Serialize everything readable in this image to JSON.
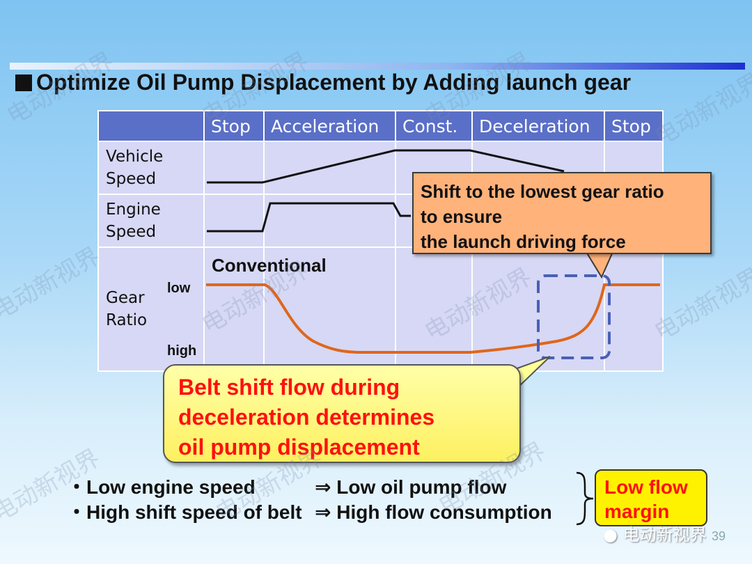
{
  "title": "Optimize Oil Pump Displacement by Adding launch gear",
  "phases": [
    "Stop",
    "Acceleration",
    "Const.",
    "Deceleration",
    "Stop"
  ],
  "rows": {
    "vehicle_speed": [
      "Vehicle",
      "Speed"
    ],
    "engine_speed": [
      "Engine",
      "Speed"
    ],
    "gear_ratio": [
      "Gear",
      "Ratio"
    ]
  },
  "gear_axis": {
    "low": "low",
    "high": "high"
  },
  "conventional_label": "Conventional",
  "orange_callout": [
    "Shift to the lowest gear ratio",
    "to ensure",
    "the launch driving force"
  ],
  "yellow_callout": [
    "Belt shift flow during",
    "deceleration determines",
    "oil pump displacement"
  ],
  "bullets": [
    {
      "left": "・Low engine speed",
      "right": "⇒ Low oil pump flow"
    },
    {
      "left": "・High shift speed of belt",
      "right": "⇒ High flow consumption"
    }
  ],
  "low_flow_box": [
    "Low flow",
    "margin"
  ],
  "watermark": "电动新视界",
  "wechat_label": "电动新视界",
  "page_number": "39",
  "colors": {
    "header_blue": "#5a6fc7",
    "cell_lavender": "#d6d8f5",
    "curve_orange": "#e0661a",
    "callout_orange": "#ffb27a",
    "callout_yellow": "#fdf060",
    "alert_red": "#ff1010",
    "dashed_box": "#4a5fb5"
  }
}
